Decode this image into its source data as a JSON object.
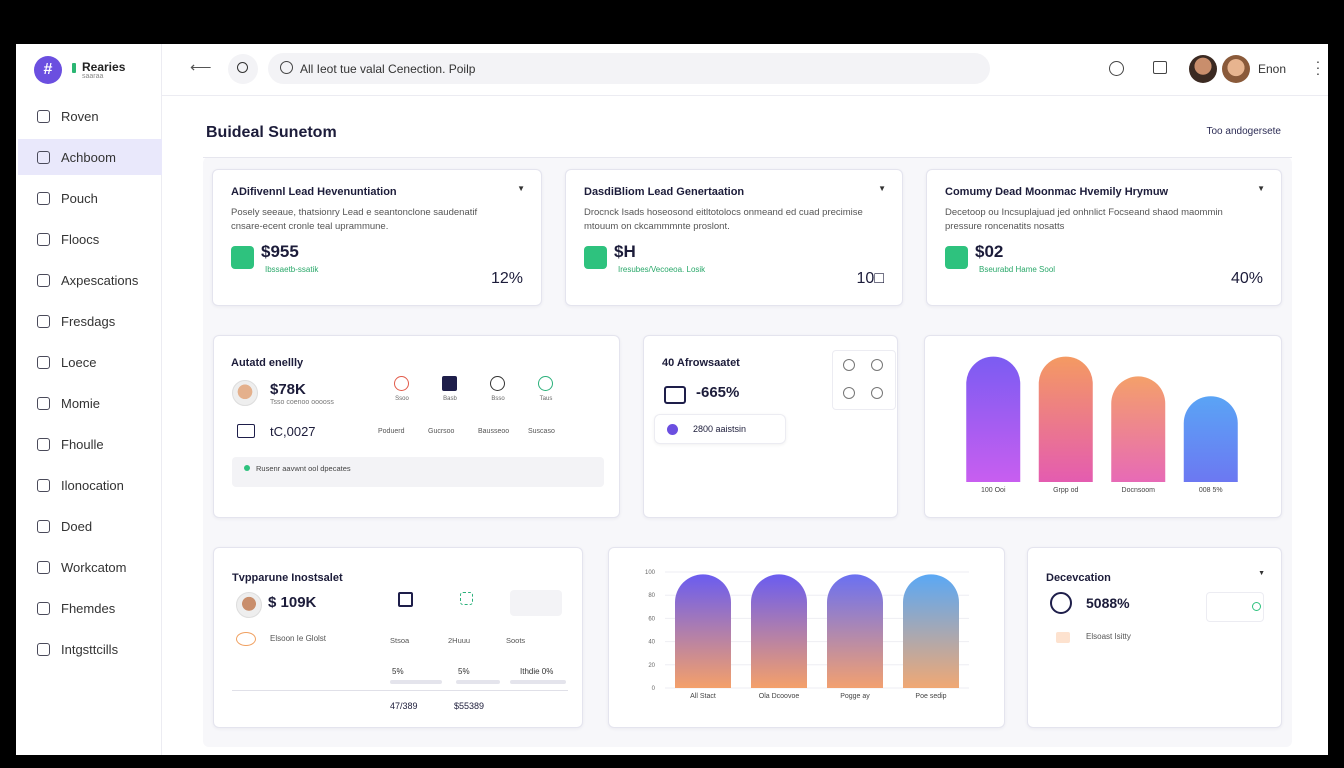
{
  "brand": {
    "name": "Rearies",
    "sub": "saaraa"
  },
  "sidebar": {
    "items": [
      "Roven",
      "Achboom",
      "Pouch",
      "Floocs",
      "Axpescations",
      "Fresdags",
      "Loece",
      "Momie",
      "Fhoulle",
      "Ilonocation",
      "Doed",
      "Workcatom",
      "Fhemdes",
      "Intgsttcills"
    ],
    "active": 1
  },
  "topbar": {
    "search": "All Ieot tue valal Cenection. Poilp",
    "user": "Enon"
  },
  "header": {
    "title": "Buideal Sunetom",
    "link": "Too andogersete"
  },
  "kpis": [
    {
      "title": "ADifivennl Lead Hevenuntiation",
      "desc": "Posely seeaue, thatsionry Lead e seantonclone saudenatif cnsare-ecent cronle teal uprammune.",
      "value": "$955",
      "note": "Ibssaetb-ssatik",
      "change": "12%"
    },
    {
      "title": "DasdiBliom Lead Genertaation",
      "desc": "Drocnck Isads hoseosond eitltotolocs onmeand ed cuad precimise mtouum on ckcammmnte proslont.",
      "value": "$H",
      "note": "Iresubes/Vecoeoa. Losik",
      "change": "10□"
    },
    {
      "title": "Comumy Dead Moonmac Hvemily Hrymuw",
      "desc": "Decetoop ou Incsuplajuad jed onhnlict Focseand shaod maommin pressure roncenatits nosatts",
      "value": "$02",
      "note": "Bseurabd Hame Sool",
      "change": "40%"
    }
  ],
  "activity": {
    "title": "Autatd enellly",
    "value": "$78K",
    "sub": "Tsso coenoo ooooss",
    "value2": "tC,0027",
    "icons": [
      "Ssoo",
      "Basb",
      "Bsso",
      "Taus"
    ],
    "labels": [
      "Poduerd",
      "Gucrsoo",
      "Bausseoo",
      "Suscaso"
    ],
    "status": "Rusenr aavwnt ool dpecates"
  },
  "conversion": {
    "title": "40 Afrowsaatet",
    "value": "-665%",
    "pill": "2800 aaistsin"
  },
  "transactions": {
    "title": "Tvpparune Inostsalet",
    "value": "$ 109K",
    "label": "Elsoon Ie Glolst",
    "columns": [
      "Stsoa",
      "2Huuu",
      "Soots"
    ],
    "cells": [
      "5%",
      "5%",
      "Ithdie 0%"
    ],
    "totals": [
      "47/389",
      "$55389"
    ]
  },
  "detection": {
    "title": "Decevcation",
    "value": "5088%",
    "label": "Elsoast Isitty"
  },
  "chart_data": [
    {
      "type": "bar",
      "categories": [
        "100 Ooi",
        "Grpp od",
        "Docnsoom",
        "008 5%"
      ],
      "values": [
        95,
        95,
        80,
        65
      ],
      "ylim": [
        0,
        100
      ],
      "colors": [
        [
          "#7b5cf2",
          "#c85ef0"
        ],
        [
          "#f49a62",
          "#e45cb0"
        ],
        [
          "#f4a06a",
          "#e76ab6"
        ],
        [
          "#5aa4f5",
          "#6c78f2"
        ]
      ]
    },
    {
      "type": "bar",
      "categories": [
        "All Stact",
        "Ola Dcoovoe",
        "Pogge ay",
        "Poe sedip"
      ],
      "values": [
        98,
        98,
        98,
        98
      ],
      "ylim": [
        0,
        100
      ],
      "yticks": [
        0,
        20,
        40,
        60,
        80,
        100
      ],
      "colors": [
        [
          "#6a5cf0",
          "#f4a06a"
        ],
        [
          "#6a5cf0",
          "#f4a06a"
        ],
        [
          "#6a70f2",
          "#f2a070"
        ],
        [
          "#5aa8f5",
          "#f0a874"
        ]
      ]
    }
  ]
}
